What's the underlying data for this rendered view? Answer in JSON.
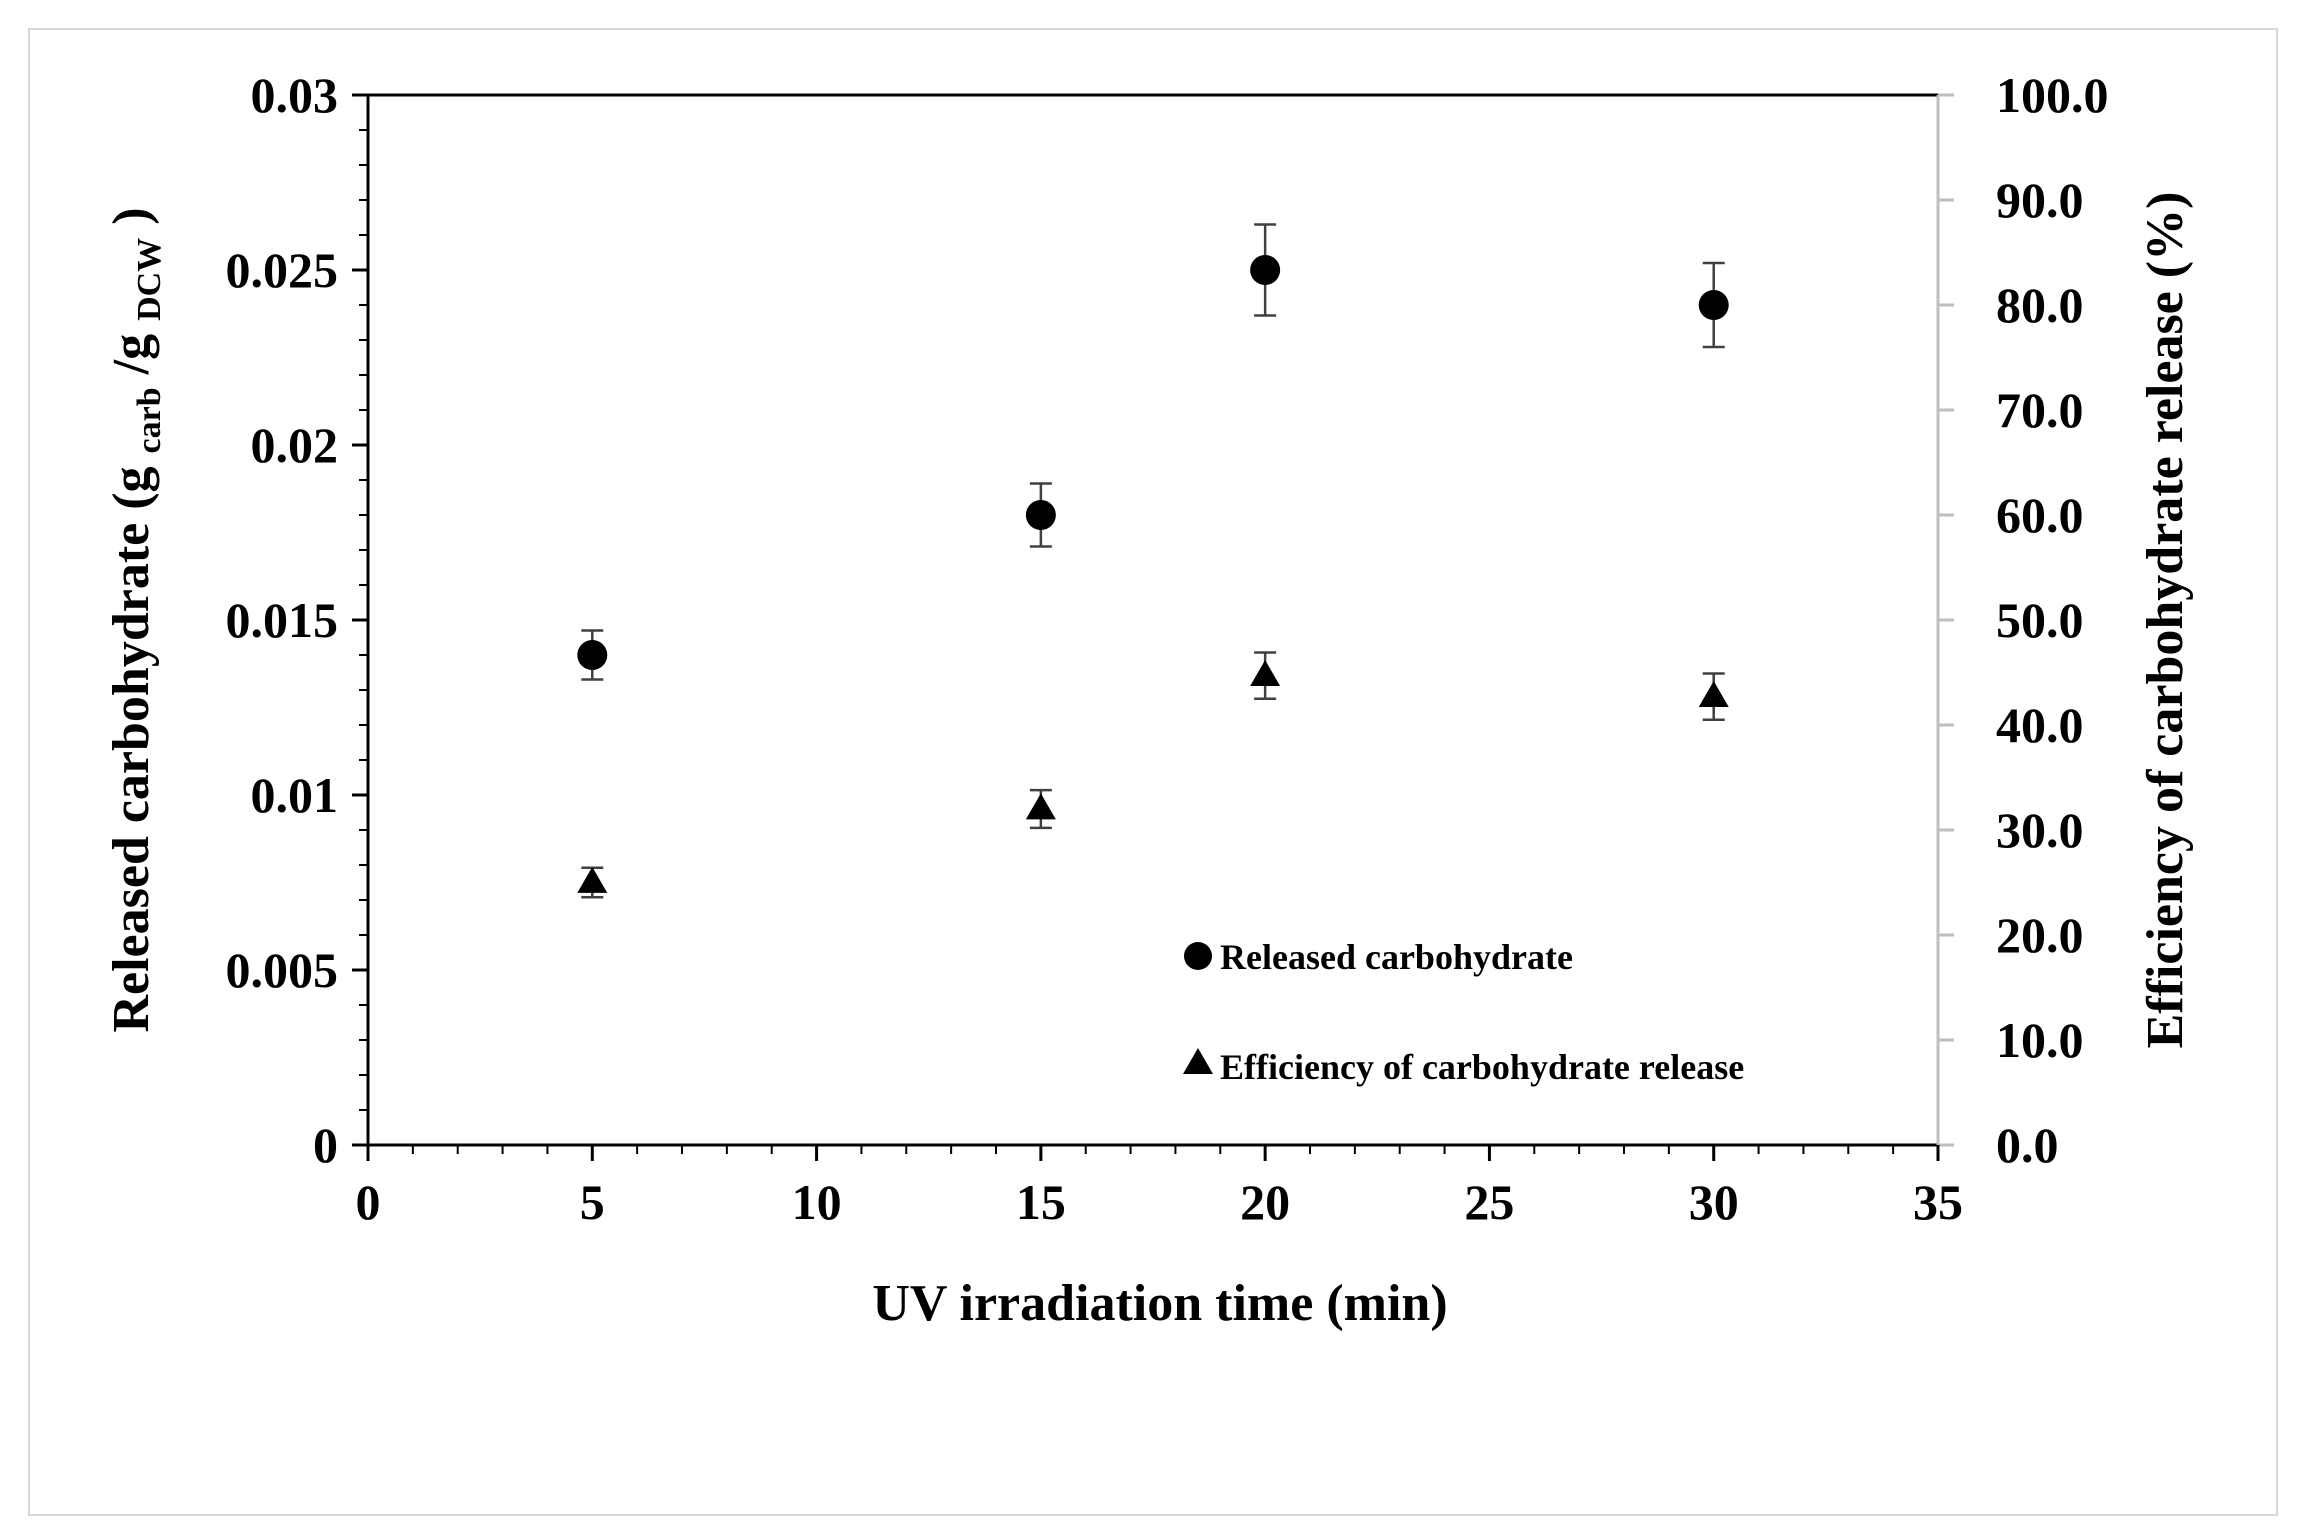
{
  "chart_data": {
    "type": "scatter",
    "xlabel": "UV irradiation time (min)",
    "ylabel": {
      "prefix": "Released  carbohydrate (g",
      "sub1": "carb",
      "mid": "/g",
      "sub2": "DCW",
      "suffix": ")"
    },
    "y2label": "Efficiency of carbohydrate release (%)",
    "xlim": [
      0,
      35
    ],
    "ylim": [
      0,
      0.03
    ],
    "y2lim": [
      0,
      100
    ],
    "x_ticks": [
      "0",
      "5",
      "10",
      "15",
      "20",
      "25",
      "30",
      "35"
    ],
    "y_ticks": [
      "0",
      "0.005",
      "0.01",
      "0.015",
      "0.02",
      "0.025",
      "0.03"
    ],
    "y2_ticks": [
      "0.0",
      "10.0",
      "20.0",
      "30.0",
      "40.0",
      "50.0",
      "60.0",
      "70.0",
      "80.0",
      "90.0",
      "100.0"
    ],
    "series": [
      {
        "name": "Released carbohydrate",
        "marker": "circle",
        "axis": "left",
        "x": [
          5,
          15,
          20,
          30
        ],
        "y": [
          0.014,
          0.018,
          0.025,
          0.024
        ],
        "err": [
          0.0007,
          0.0009,
          0.0013,
          0.0012
        ]
      },
      {
        "name": "Efficiency of carbohydrate release",
        "marker": "triangle",
        "axis": "right",
        "x": [
          5,
          15,
          20,
          30
        ],
        "y": [
          25.0,
          32.0,
          44.7,
          42.7
        ],
        "err": [
          1.4,
          1.8,
          2.2,
          2.2
        ]
      }
    ],
    "legend_position": "bottom-right",
    "grid": false,
    "colors": {
      "marker": "#000000",
      "error_bar": "#404040",
      "right_axis": "#bfbfbf"
    }
  }
}
